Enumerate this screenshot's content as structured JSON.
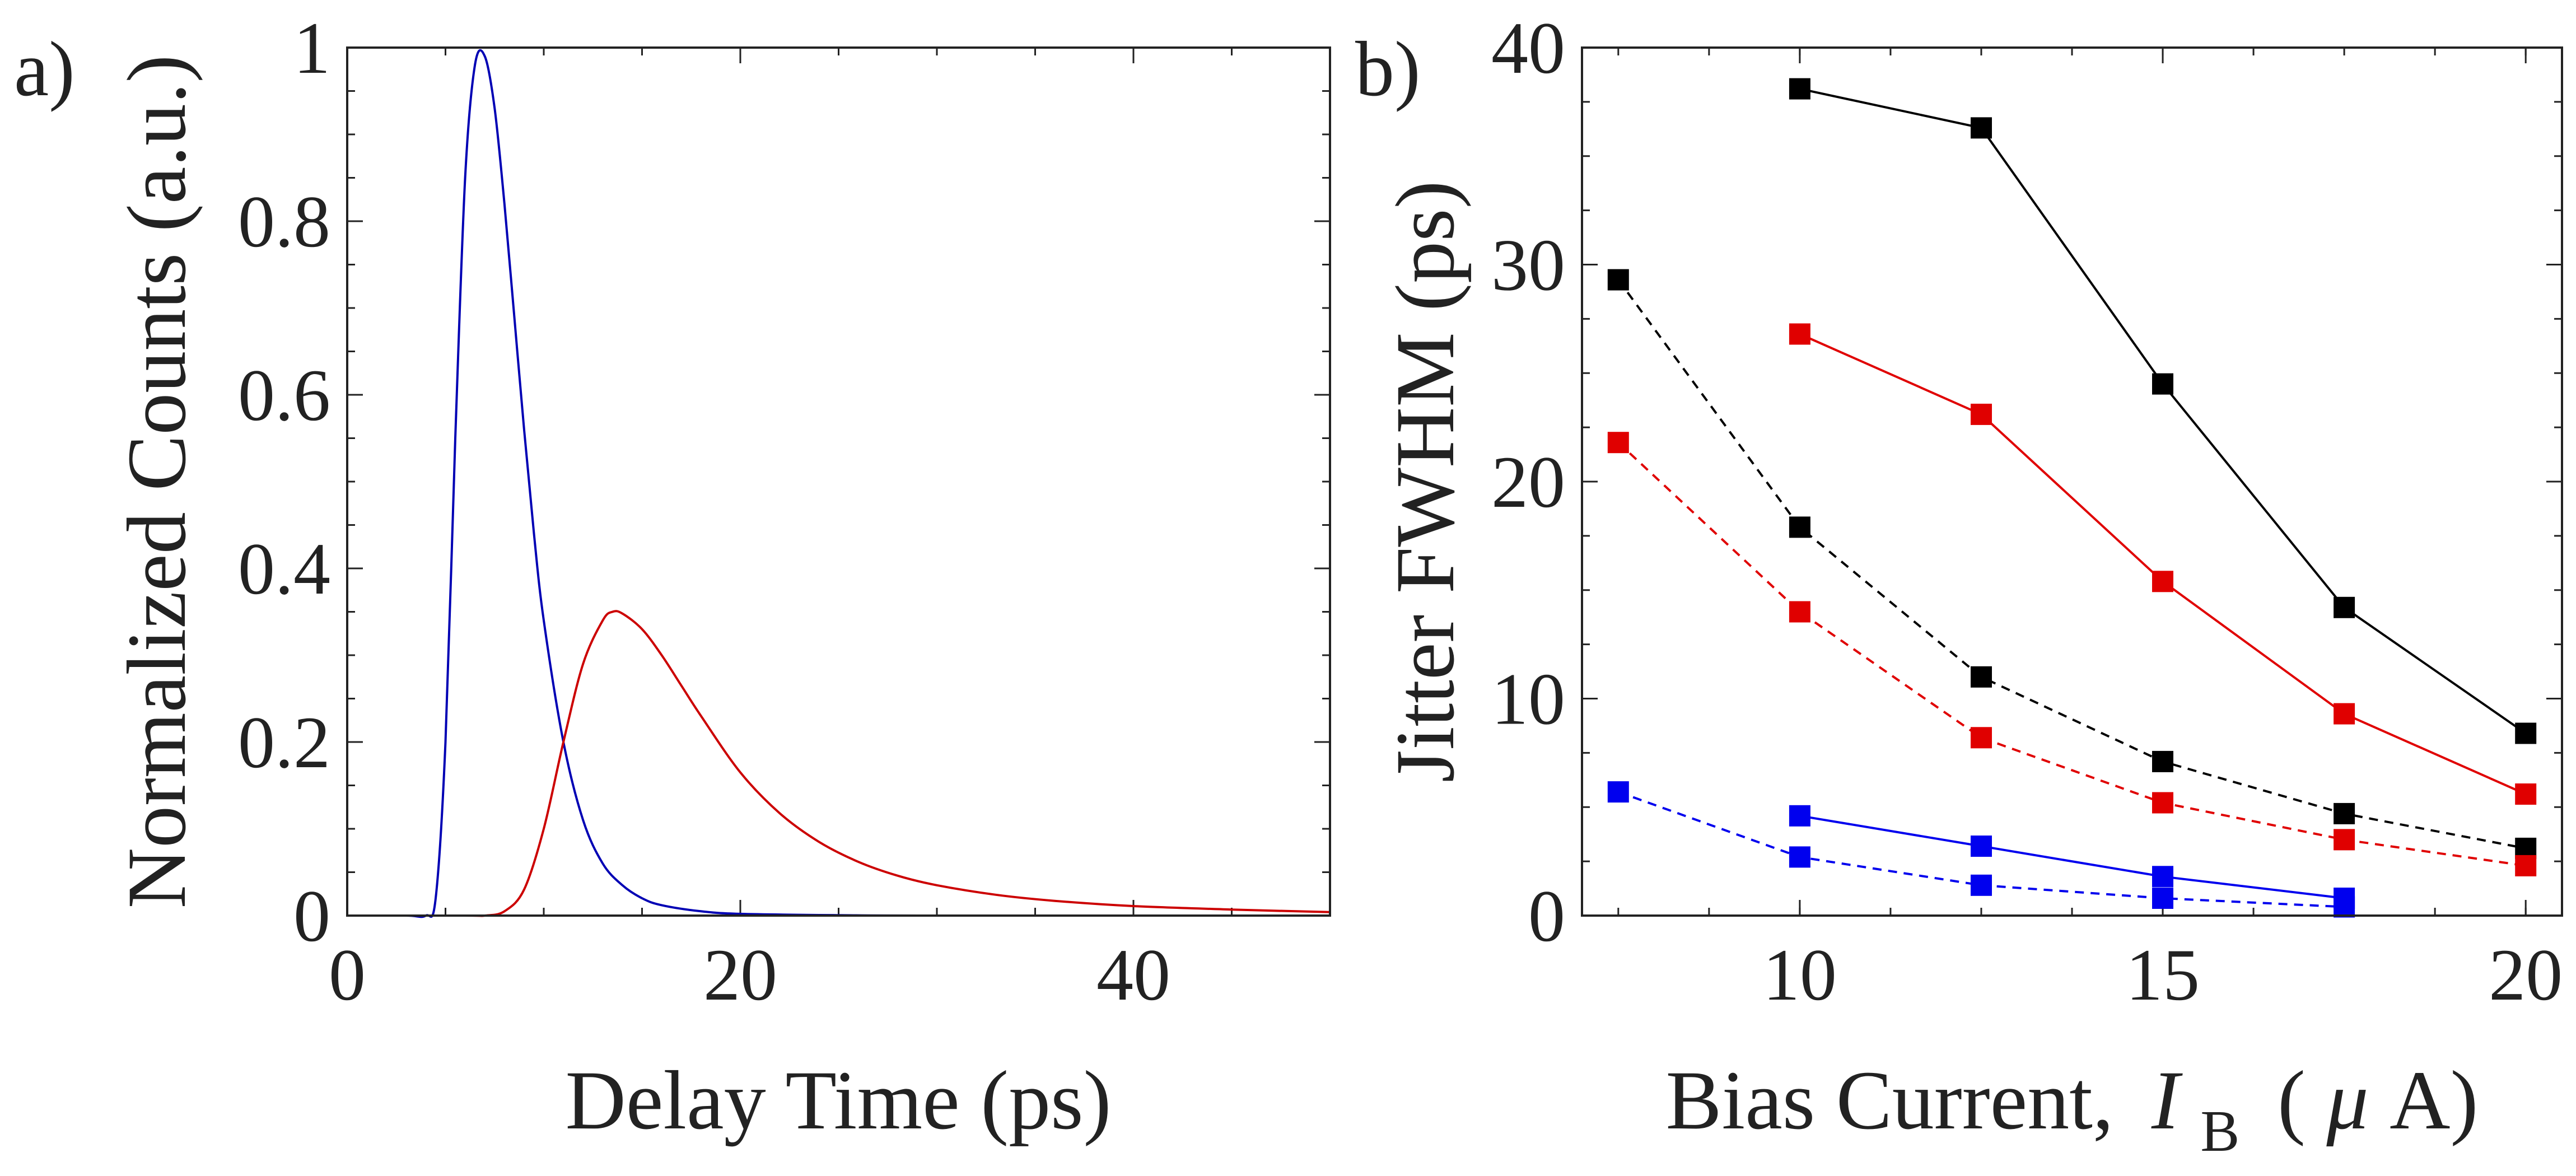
{
  "chart_data": [
    {
      "type": "line",
      "panel_label": "a)",
      "xlabel": "Delay Time (ps)",
      "ylabel": "Normalized Counts (a.u.)",
      "xlim": [
        0,
        50
      ],
      "ylim": [
        0,
        1
      ],
      "xticks": [
        0,
        20,
        40
      ],
      "yticks": [
        0,
        0.2,
        0.4,
        0.6,
        0.8,
        1
      ],
      "ytick_labels": [
        "0",
        "0.2",
        "0.4",
        "0.6",
        "0.8",
        "1"
      ],
      "series": [
        {
          "name": "blue",
          "color": "#0000b4",
          "x": [
            0,
            3,
            4,
            4.5,
            5,
            5.5,
            6,
            6.5,
            7,
            7.5,
            8,
            8.5,
            9,
            9.5,
            10,
            11,
            12,
            13,
            14,
            15,
            16,
            18,
            20,
            25,
            30,
            50
          ],
          "y": [
            0,
            0,
            0,
            0.02,
            0.2,
            0.55,
            0.85,
            0.98,
            0.99,
            0.93,
            0.82,
            0.69,
            0.56,
            0.44,
            0.34,
            0.2,
            0.11,
            0.06,
            0.035,
            0.02,
            0.012,
            0.005,
            0.002,
            0.0005,
            0,
            0
          ]
        },
        {
          "name": "red",
          "color": "#cc0000",
          "x": [
            0,
            6,
            7,
            8,
            9,
            10,
            11,
            12,
            13,
            13.5,
            14,
            15,
            16,
            17,
            18,
            20,
            22,
            24,
            26,
            28,
            30,
            33,
            36,
            40,
            45,
            50
          ],
          "y": [
            0,
            0,
            0,
            0.005,
            0.03,
            0.1,
            0.2,
            0.29,
            0.34,
            0.35,
            0.348,
            0.33,
            0.3,
            0.265,
            0.23,
            0.165,
            0.118,
            0.085,
            0.062,
            0.046,
            0.035,
            0.024,
            0.017,
            0.011,
            0.007,
            0.004
          ]
        }
      ]
    },
    {
      "type": "line",
      "panel_label": "b)",
      "xlabel_main": "Bias Current,",
      "xlabel_var": "I",
      "xlabel_sub": "B",
      "xlabel_unit_open": "(",
      "xlabel_mu": "μ",
      "xlabel_unit_close": "A)",
      "ylabel": "Jitter FWHM (ps)",
      "xlim": [
        7,
        20.5
      ],
      "ylim": [
        0,
        40
      ],
      "xticks": [
        10,
        15,
        20
      ],
      "yticks": [
        0,
        10,
        20,
        30,
        40
      ],
      "series": [
        {
          "name": "black-solid",
          "color": "#000000",
          "dashed": false,
          "x": [
            10,
            12.5,
            15,
            17.5,
            20
          ],
          "y": [
            38.1,
            36.3,
            24.5,
            14.2,
            8.4
          ]
        },
        {
          "name": "red-solid",
          "color": "#e00000",
          "dashed": false,
          "x": [
            10,
            12.5,
            15,
            17.5,
            20
          ],
          "y": [
            26.8,
            23.1,
            15.4,
            9.3,
            5.6
          ]
        },
        {
          "name": "black-dashed",
          "color": "#000000",
          "dashed": true,
          "x": [
            7.5,
            10,
            12.5,
            15,
            17.5,
            20
          ],
          "y": [
            29.3,
            17.9,
            11.0,
            7.1,
            4.7,
            3.1
          ]
        },
        {
          "name": "red-dashed",
          "color": "#e00000",
          "dashed": true,
          "x": [
            7.5,
            10,
            12.5,
            15,
            17.5,
            20
          ],
          "y": [
            21.8,
            14.0,
            8.2,
            5.2,
            3.5,
            2.3
          ]
        },
        {
          "name": "blue-solid",
          "color": "#0000ee",
          "dashed": false,
          "x": [
            10,
            12.5,
            15,
            17.5
          ],
          "y": [
            4.6,
            3.2,
            1.8,
            0.8
          ]
        },
        {
          "name": "blue-dashed",
          "color": "#0000ee",
          "dashed": true,
          "x": [
            7.5,
            10,
            12.5,
            15,
            17.5
          ],
          "y": [
            5.7,
            2.7,
            1.4,
            0.8,
            0.4
          ]
        }
      ]
    }
  ]
}
